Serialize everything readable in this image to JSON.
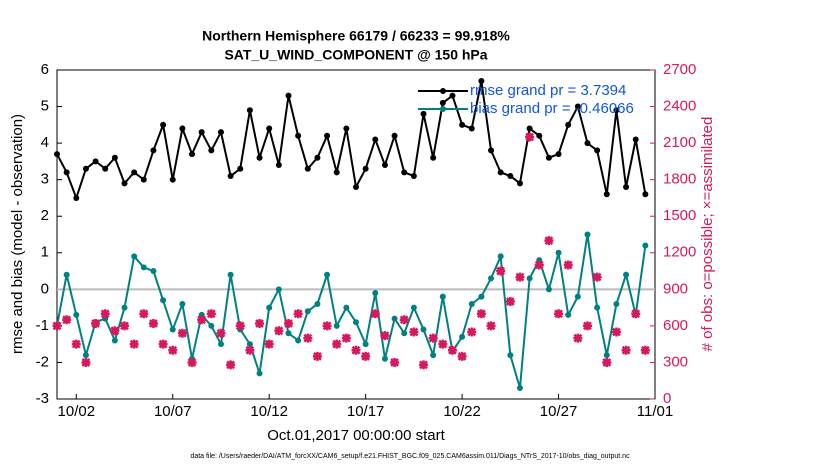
{
  "chart_data": {
    "type": "line",
    "title": "Northern Hemisphere 66179 / 66233 = 99.918%",
    "subtitle": "SAT_U_WIND_COMPONENT @ 150 hPa",
    "xlabel": "Oct.01,2017 00:00:00 start",
    "ylabel": "rmse and bias (model - observation)",
    "y2label": "# of obs: o=possible; ×=assimilated",
    "footnote": "data file: /Users/raeder/DAI/ATM_forcXX/CAM6_setup/f.e21.FHIST_BGC.f09_025.CAM6assim.011/Diags_NTrS_2017-10/obs_diag_output.nc",
    "x": [
      0,
      0.5,
      1,
      1.5,
      2,
      2.5,
      3,
      3.5,
      4,
      4.5,
      5,
      5.5,
      6,
      6.5,
      7,
      7.5,
      8,
      8.5,
      9,
      9.5,
      10,
      10.5,
      11,
      11.5,
      12,
      12.5,
      13,
      13.5,
      14,
      14.5,
      15,
      15.5,
      16,
      16.5,
      17,
      17.5,
      18,
      18.5,
      19,
      19.5,
      20,
      20.5,
      21,
      21.5,
      22,
      22.5,
      23,
      23.5,
      24,
      24.5,
      25,
      25.5,
      26,
      26.5,
      27,
      27.5,
      28,
      28.5,
      29,
      29.5,
      30,
      30.5
    ],
    "series": [
      {
        "name": "rmse grand pr = 3.7394",
        "color": "#000000",
        "values": [
          3.7,
          3.2,
          2.5,
          3.3,
          3.5,
          3.3,
          3.6,
          2.9,
          3.2,
          3.0,
          3.8,
          4.5,
          3.0,
          4.4,
          3.7,
          4.3,
          3.8,
          4.3,
          3.1,
          3.3,
          4.9,
          3.6,
          4.4,
          3.4,
          5.3,
          4.2,
          3.3,
          3.6,
          4.2,
          3.2,
          4.4,
          2.8,
          3.3,
          4.1,
          3.4,
          4.2,
          3.2,
          3.1,
          4.8,
          3.6,
          5.1,
          5.3,
          4.5,
          4.4,
          5.7,
          3.8,
          3.2,
          3.1,
          2.9,
          4.4,
          4.2,
          3.6,
          3.7,
          4.5,
          5.0,
          4.0,
          3.8,
          2.6,
          4.9,
          2.8,
          4.1,
          2.6
        ]
      },
      {
        "name": "bias grand pr = -0.46066",
        "color": "#008080",
        "values": [
          -1.0,
          0.4,
          -0.7,
          -1.8,
          -0.9,
          -0.8,
          -1.4,
          -0.5,
          0.9,
          0.6,
          0.5,
          -0.3,
          -1.1,
          -0.4,
          -1.9,
          -0.7,
          -1.0,
          -1.5,
          0.4,
          -1.1,
          -1.5,
          -2.3,
          -0.5,
          0.0,
          -1.2,
          -1.4,
          -0.6,
          -0.4,
          0.4,
          -1.0,
          -0.5,
          -0.9,
          -1.5,
          -0.1,
          -1.9,
          -0.8,
          -1.2,
          -0.5,
          -1.1,
          -1.8,
          -0.2,
          -1.7,
          -1.3,
          -0.4,
          -0.2,
          0.3,
          0.9,
          -1.8,
          -2.7,
          0.3,
          0.8,
          0.0,
          1.0,
          -0.7,
          -0.2,
          1.5,
          -0.5,
          -1.8,
          -0.4,
          0.4,
          -0.7,
          1.2
        ]
      },
      {
        "color": "#d6185f",
        "axis": "y2",
        "marker": "x",
        "values": [
          600,
          650,
          450,
          300,
          620,
          700,
          560,
          600,
          450,
          700,
          620,
          450,
          400,
          540,
          300,
          650,
          700,
          540,
          280,
          600,
          400,
          620,
          450,
          560,
          620,
          700,
          500,
          350,
          600,
          450,
          500,
          400,
          350,
          700,
          520,
          300,
          650,
          550,
          280,
          500,
          450,
          400,
          350,
          550,
          700,
          600,
          1050,
          800,
          1000,
          2150,
          1100,
          1300,
          700,
          1100,
          500,
          600,
          1000,
          300,
          550,
          400,
          700,
          400
        ]
      }
    ],
    "xlim": [
      0,
      31
    ],
    "xticks": [
      {
        "value": 1,
        "label": "10/02"
      },
      {
        "value": 6,
        "label": "10/07"
      },
      {
        "value": 11,
        "label": "10/12"
      },
      {
        "value": 16,
        "label": "10/17"
      },
      {
        "value": 21,
        "label": "10/22"
      },
      {
        "value": 26,
        "label": "10/27"
      },
      {
        "value": 31,
        "label": "11/01"
      }
    ],
    "ylim": [
      -3,
      6
    ],
    "yticks": [
      -3,
      -2,
      -1,
      0,
      1,
      2,
      3,
      4,
      5,
      6
    ],
    "y2lim": [
      0,
      2700
    ],
    "y2ticks": [
      0,
      300,
      600,
      900,
      1200,
      1500,
      1800,
      2100,
      2400,
      2700
    ],
    "hline": 0,
    "legend": "northeast"
  }
}
